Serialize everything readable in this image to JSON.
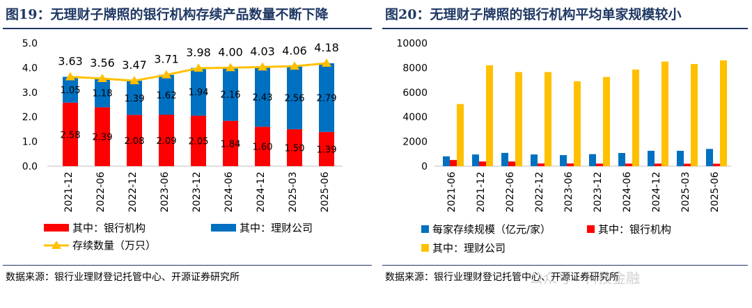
{
  "left": {
    "title": "图19：无理财子牌照的银行机构存续产品数量不断下降",
    "source": "数据来源：银行业理财登记托管中心、开源证券研究所"
  },
  "right": {
    "title": "图20：无理财子牌照的银行机构平均单家规模较小",
    "source": "数据来源：银行业理财登记托管中心、开源证券研究所"
  },
  "watermark": "公众号 · 科技金融",
  "chart_data": [
    {
      "type": "bar",
      "stacked": true,
      "categories": [
        "2021-12",
        "2022-06",
        "2022-12",
        "2023-06",
        "2023-12",
        "2024-06",
        "2024-12",
        "2025-03",
        "2025-06"
      ],
      "ylim": [
        0,
        5
      ],
      "yticks": [
        "0.0",
        "1.0",
        "2.0",
        "3.0",
        "4.0",
        "5.0"
      ],
      "series": [
        {
          "name": "其中：银行机构",
          "color": "#ff0000",
          "values": [
            2.58,
            2.39,
            2.08,
            2.09,
            2.05,
            1.84,
            1.6,
            1.5,
            1.39
          ],
          "labels": [
            "2.58",
            "2.39",
            "2.08",
            "2.09",
            "2.05",
            "1.84",
            "1.60",
            "1.50",
            "1.39"
          ]
        },
        {
          "name": "其中：理财公司",
          "color": "#0070c0",
          "values": [
            1.05,
            1.18,
            1.39,
            1.62,
            1.94,
            2.16,
            2.43,
            2.56,
            2.79
          ],
          "labels": [
            "1.05",
            "1.18",
            "1.39",
            "1.62",
            "1.94",
            "2.16",
            "2.43",
            "2.56",
            "2.79"
          ]
        }
      ],
      "line": {
        "name": "存续数量（万只）",
        "color": "#ffc000",
        "values": [
          3.63,
          3.56,
          3.47,
          3.71,
          3.98,
          4.0,
          4.03,
          4.06,
          4.18
        ],
        "labels": [
          "3.63",
          "3.56",
          "3.47",
          "3.71",
          "3.98",
          "4.00",
          "4.03",
          "4.06",
          "4.18"
        ]
      },
      "legend_placement": "bottom"
    },
    {
      "type": "bar",
      "categories": [
        "2021-06",
        "2021-12",
        "2022-06",
        "2022-12",
        "2023-06",
        "2023-12",
        "2024-06",
        "2024-12",
        "2025-03",
        "2025-06"
      ],
      "ylim": [
        0,
        10000
      ],
      "yticks": [
        "0",
        "2000",
        "4000",
        "6000",
        "8000",
        "10000"
      ],
      "series": [
        {
          "name": "每家存续规模（亿元/家）",
          "color": "#0070c0",
          "values": [
            800,
            950,
            1080,
            950,
            900,
            980,
            1070,
            1250,
            1250,
            1400
          ]
        },
        {
          "name": "其中：银行机构",
          "color": "#ff0000",
          "values": [
            500,
            380,
            380,
            220,
            220,
            210,
            210,
            210,
            200,
            200
          ]
        },
        {
          "name": "其中：理财公司",
          "color": "#ffc000",
          "values": [
            5050,
            8200,
            7650,
            7650,
            6900,
            7250,
            7850,
            8500,
            8300,
            8600
          ]
        }
      ],
      "legend_placement": "bottom"
    }
  ]
}
